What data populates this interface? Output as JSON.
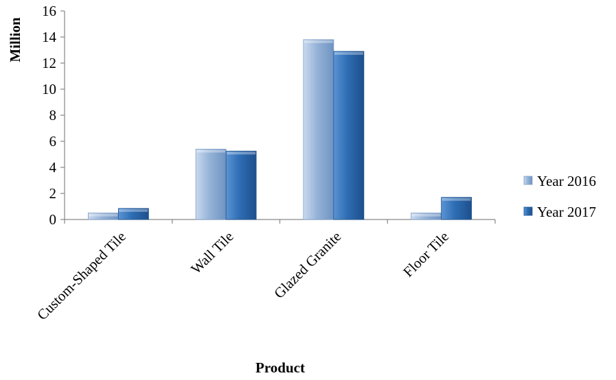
{
  "chart_data": {
    "type": "bar",
    "title": "",
    "xlabel": "Product",
    "ylabel": "Million",
    "categories": [
      "Custom-Shaped Tile",
      "Wall Tile",
      "Glazed Granite",
      "Floor Tile"
    ],
    "series": [
      {
        "name": "Year 2016",
        "values": [
          0.5,
          5.4,
          13.8,
          0.5
        ],
        "color": "#95b3d7"
      },
      {
        "name": "Year 2017",
        "values": [
          0.85,
          5.25,
          12.9,
          1.7
        ],
        "color": "#2e6db4"
      }
    ],
    "ylim": [
      0,
      16
    ],
    "yticks": [
      "0",
      "2",
      "4",
      "6",
      "8",
      "10",
      "12",
      "14",
      "16"
    ],
    "grid": false,
    "legend_position": "right"
  }
}
